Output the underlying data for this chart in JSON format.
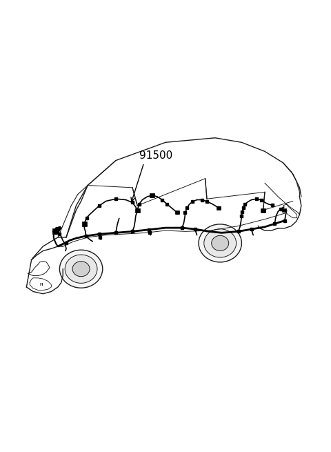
{
  "background_color": "#ffffff",
  "part_label": "91500",
  "figure_width": 4.8,
  "figure_height": 6.55,
  "car_color": "#1a1a1a",
  "car_linewidth": 1.0,
  "wiring_color": "#000000",
  "wiring_linewidth": 1.5
}
